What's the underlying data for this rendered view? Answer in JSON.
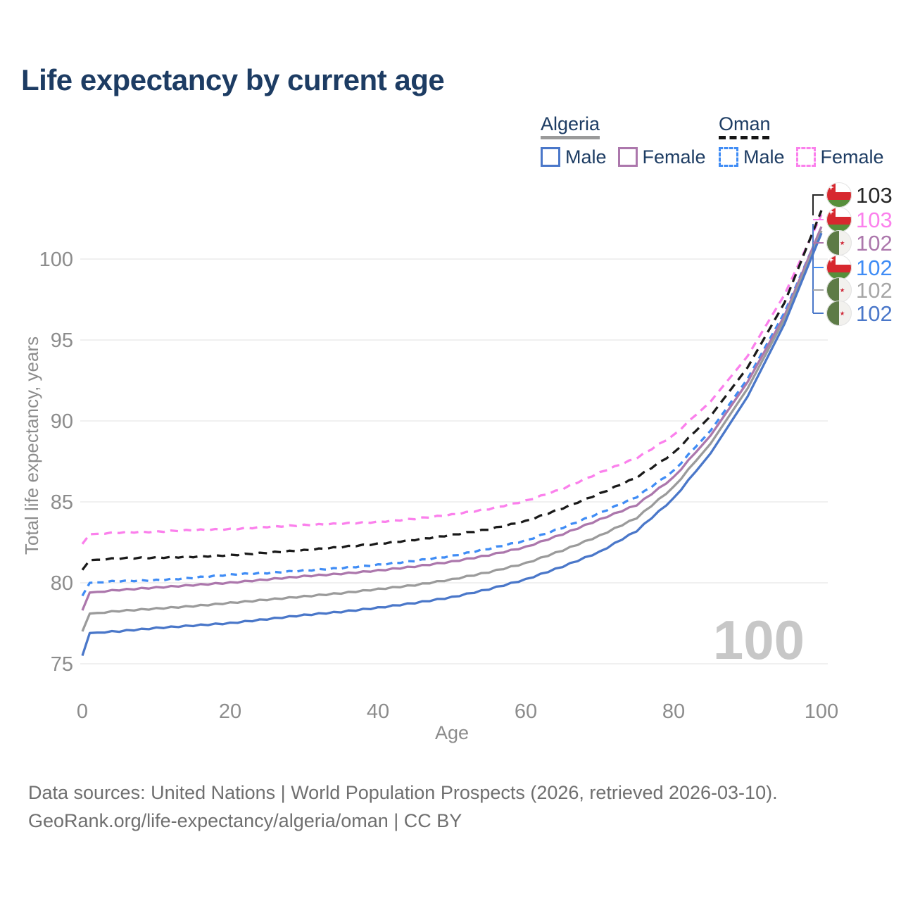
{
  "title": "Life expectancy by current age",
  "legend": {
    "groups": [
      {
        "name": "Algeria",
        "swatch_style": "solid",
        "line": {
          "style": "solid",
          "color": "#9a9a9a"
        },
        "items": [
          {
            "label": "Male",
            "color": "#4A77C9"
          },
          {
            "label": "Female",
            "color": "#AC77AC"
          }
        ]
      },
      {
        "name": "Oman",
        "swatch_style": "dashed",
        "line": {
          "style": "dashed",
          "color": "#161616"
        },
        "items": [
          {
            "label": "Male",
            "color": "#3F8CF5"
          },
          {
            "label": "Female",
            "color": "#FB80EC"
          }
        ]
      }
    ]
  },
  "watermark": {
    "age": "100"
  },
  "caption": {
    "line1": "Data sources: United Nations | World Population Prospects (2026, retrieved 2026-03-10).",
    "line2": "GeoRank.org/life-expectancy/algeria/oman | CC BY"
  },
  "right_labels": [
    {
      "value": "103",
      "color": "#262626",
      "flag": "oman",
      "series": "oman-all"
    },
    {
      "value": "103",
      "color": "#FB80EC",
      "flag": "oman",
      "series": "oman-female"
    },
    {
      "value": "102",
      "color": "#AC77AC",
      "flag": "algeria",
      "series": "algeria-female"
    },
    {
      "value": "102",
      "color": "#3F8CF5",
      "flag": "oman",
      "series": "oman-male"
    },
    {
      "value": "102",
      "color": "#A6A6A6",
      "flag": "algeria",
      "series": "algeria-all"
    },
    {
      "value": "102",
      "color": "#4A77C9",
      "flag": "algeria",
      "series": "algeria-male"
    }
  ],
  "flags": {
    "oman": {
      "red": "#D7282F",
      "green": "#568F3B",
      "white": "#FFFFFF"
    },
    "algeria": {
      "green": "#5D7B46",
      "white": "#F2F1EE",
      "red": "#CF2637"
    }
  },
  "chart_data": {
    "type": "line",
    "xlabel": "Age",
    "ylabel": "Total life expectancy, years",
    "x_ticks": [
      0,
      20,
      40,
      60,
      80,
      100
    ],
    "y_ticks": [
      75,
      80,
      85,
      90,
      95,
      100
    ],
    "xlim": [
      0,
      100
    ],
    "ylim": [
      75,
      103.6
    ],
    "grid": "horizontal",
    "x": [
      0,
      1,
      5,
      10,
      15,
      20,
      25,
      30,
      35,
      40,
      45,
      50,
      55,
      60,
      65,
      70,
      75,
      80,
      85,
      90,
      95,
      100
    ],
    "series": [
      {
        "id": "oman-female",
        "country": "Oman",
        "sex": "Female",
        "style": "dashed",
        "color": "#FB80EC",
        "values": [
          82.4,
          83.0,
          83.1,
          83.15,
          83.25,
          83.3,
          83.45,
          83.55,
          83.65,
          83.75,
          83.95,
          84.2,
          84.55,
          85.05,
          85.8,
          86.8,
          87.7,
          89.1,
          91.2,
          94.0,
          97.8,
          102.75
        ]
      },
      {
        "id": "oman-all",
        "country": "Oman",
        "sex": "All",
        "style": "dashed",
        "color": "#1A1A1A",
        "values": [
          80.8,
          81.4,
          81.5,
          81.55,
          81.6,
          81.7,
          81.85,
          82.0,
          82.2,
          82.4,
          82.65,
          82.95,
          83.3,
          83.8,
          84.6,
          85.5,
          86.5,
          88.0,
          90.3,
          93.3,
          97.3,
          103.0
        ]
      },
      {
        "id": "oman-male",
        "country": "Oman",
        "sex": "Male",
        "style": "dashed",
        "color": "#3F8CF5",
        "values": [
          79.2,
          80.0,
          80.1,
          80.15,
          80.3,
          80.5,
          80.6,
          80.75,
          80.9,
          81.1,
          81.35,
          81.65,
          82.1,
          82.6,
          83.4,
          84.3,
          85.3,
          86.9,
          89.4,
          92.6,
          96.7,
          101.95
        ]
      },
      {
        "id": "algeria-female",
        "country": "Algeria",
        "sex": "Female",
        "style": "solid",
        "color": "#AC77AC",
        "values": [
          78.3,
          79.4,
          79.55,
          79.7,
          79.85,
          80.0,
          80.2,
          80.4,
          80.55,
          80.75,
          81.0,
          81.3,
          81.7,
          82.2,
          83.0,
          83.9,
          84.8,
          86.5,
          89.1,
          92.4,
          96.5,
          102.0
        ]
      },
      {
        "id": "algeria-all",
        "country": "Algeria",
        "sex": "All",
        "style": "solid",
        "color": "#9B9B9B",
        "values": [
          77.0,
          78.1,
          78.25,
          78.4,
          78.55,
          78.75,
          78.95,
          79.15,
          79.35,
          79.6,
          79.85,
          80.2,
          80.65,
          81.2,
          82.0,
          82.9,
          84.0,
          85.9,
          88.6,
          92.0,
          96.3,
          101.75
        ]
      },
      {
        "id": "algeria-male",
        "country": "Algeria",
        "sex": "Male",
        "style": "solid",
        "color": "#4A77C9",
        "values": [
          75.5,
          76.9,
          77.0,
          77.2,
          77.35,
          77.5,
          77.75,
          78.0,
          78.2,
          78.45,
          78.75,
          79.1,
          79.6,
          80.2,
          81.0,
          81.9,
          83.2,
          85.2,
          88.0,
          91.5,
          96.0,
          101.6
        ]
      }
    ]
  }
}
